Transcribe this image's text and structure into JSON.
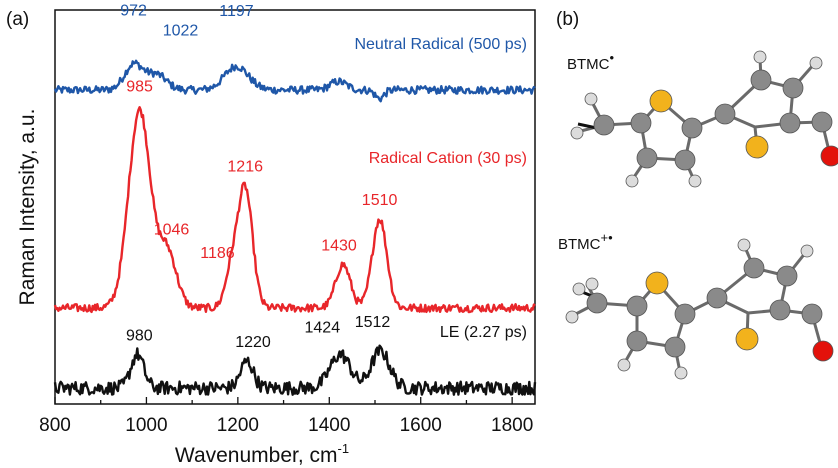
{
  "panel_labels": {
    "a": "(a)",
    "b": "(b)"
  },
  "chart_data": {
    "type": "line",
    "xlabel": "Wavenumber, cm",
    "xlabel_superscript": "-1",
    "ylabel": "Raman Intensity, a.u.",
    "xlim": [
      800,
      1850
    ],
    "xticks": [
      800,
      1000,
      1200,
      1400,
      1600,
      1800
    ],
    "y_ticks_shown": false,
    "legend": "inline labels",
    "series": [
      {
        "name": "Neutral Radical (500 ps)",
        "color": "#1f57a8",
        "baseline": 0.0,
        "peaks": [
          {
            "x": 972,
            "amp": 0.3,
            "width": 20
          },
          {
            "x": 1022,
            "amp": 0.18,
            "width": 22
          },
          {
            "x": 1197,
            "amp": 0.28,
            "width": 26
          },
          {
            "x": 1420,
            "amp": 0.1,
            "width": 18
          },
          {
            "x": 1510,
            "amp": -0.1,
            "width": 10
          }
        ],
        "noise": 0.045
      },
      {
        "name": "Radical Cation (30 ps)",
        "color": "#e8262a",
        "baseline": 0.0,
        "peaks": [
          {
            "x": 985,
            "amp": 1.0,
            "width": 24
          },
          {
            "x": 1046,
            "amp": 0.28,
            "width": 20
          },
          {
            "x": 1186,
            "amp": 0.18,
            "width": 14
          },
          {
            "x": 1216,
            "amp": 0.6,
            "width": 16
          },
          {
            "x": 1430,
            "amp": 0.22,
            "width": 16
          },
          {
            "x": 1510,
            "amp": 0.45,
            "width": 16
          }
        ],
        "noise": 0.02
      },
      {
        "name": "LE (2.27 ps)",
        "color": "#111111",
        "baseline": 0.0,
        "peaks": [
          {
            "x": 980,
            "amp": 0.3,
            "width": 14
          },
          {
            "x": 1220,
            "amp": 0.24,
            "width": 14
          },
          {
            "x": 1424,
            "amp": 0.3,
            "width": 22
          },
          {
            "x": 1512,
            "amp": 0.33,
            "width": 20
          }
        ],
        "noise": 0.06
      }
    ],
    "annotations": [
      {
        "text": "972",
        "series": 0,
        "x": 972
      },
      {
        "text": "1022",
        "series": 0,
        "x": 1022
      },
      {
        "text": "1197",
        "series": 0,
        "x": 1197
      },
      {
        "text": "985",
        "series": 1,
        "x": 985
      },
      {
        "text": "1046",
        "series": 1,
        "x": 1046
      },
      {
        "text": "1186",
        "series": 1,
        "x": 1186
      },
      {
        "text": "1216",
        "series": 1,
        "x": 1216
      },
      {
        "text": "1430",
        "series": 1,
        "x": 1430
      },
      {
        "text": "1510",
        "series": 1,
        "x": 1510
      },
      {
        "text": "980",
        "series": 2,
        "x": 980
      },
      {
        "text": "1220",
        "series": 2,
        "x": 1220
      },
      {
        "text": "1424",
        "series": 2,
        "x": 1424
      },
      {
        "text": "1512",
        "series": 2,
        "x": 1512
      }
    ]
  },
  "molecules": [
    {
      "label": "BTMC",
      "superscript": "•"
    },
    {
      "label": "BTMC",
      "superscript": "+•"
    }
  ],
  "atom_colors": {
    "carbon": "#8a8a8a",
    "hydrogen": "#dcdcdc",
    "sulfur": "#f2b21c",
    "oxygen": "#e3120b"
  }
}
